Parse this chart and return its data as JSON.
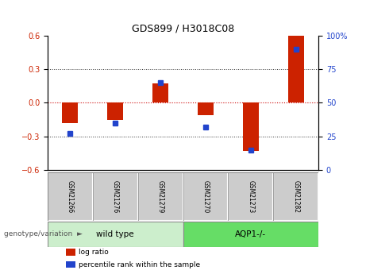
{
  "title": "GDS899 / H3018C08",
  "samples": [
    "GSM21266",
    "GSM21276",
    "GSM21279",
    "GSM21270",
    "GSM21273",
    "GSM21282"
  ],
  "log_ratio": [
    -0.18,
    -0.15,
    0.17,
    -0.11,
    -0.43,
    0.6
  ],
  "percentile": [
    27,
    35,
    65,
    32,
    15,
    90
  ],
  "wild_type_indices": [
    0,
    1,
    2
  ],
  "aqp1_indices": [
    3,
    4,
    5
  ],
  "ylim": [
    -0.6,
    0.6
  ],
  "yticks_left": [
    -0.6,
    -0.3,
    0.0,
    0.3,
    0.6
  ],
  "yticks_right": [
    0,
    25,
    50,
    75,
    100
  ],
  "bar_color_log": "#cc2200",
  "bar_color_pct": "#2244cc",
  "wt_box_color": "#cceecc",
  "aqp1_box_color": "#66dd66",
  "sample_box_color": "#cccccc",
  "zero_line_color": "#cc0000",
  "dotted_line_color": "#333333",
  "bar_width": 0.35,
  "legend_label_log": "log ratio",
  "legend_label_pct": "percentile rank within the sample",
  "genotype_label": "genotype/variation",
  "wt_label": "wild type",
  "aqp1_label": "AQP1-/-"
}
